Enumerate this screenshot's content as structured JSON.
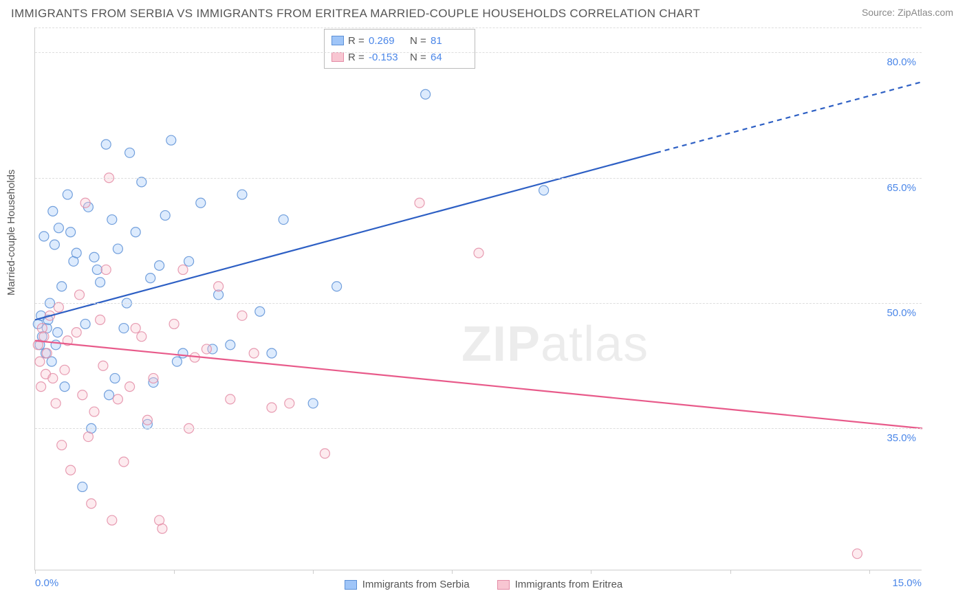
{
  "title": "IMMIGRANTS FROM SERBIA VS IMMIGRANTS FROM ERITREA MARRIED-COUPLE HOUSEHOLDS CORRELATION CHART",
  "source": "Source: ZipAtlas.com",
  "ylabel": "Married-couple Households",
  "watermark_bold": "ZIP",
  "watermark_rest": "atlas",
  "chart": {
    "type": "scatter",
    "xlim": [
      0.0,
      15.0
    ],
    "ylim": [
      18.0,
      83.0
    ],
    "x_tick_positions": [
      0.0,
      2.35,
      4.7,
      7.05,
      9.4,
      11.75,
      14.1
    ],
    "x_tick_labels": {
      "0": "0.0%",
      "15": "15.0%"
    },
    "y_ticks": [
      35.0,
      50.0,
      65.0,
      80.0
    ],
    "y_tick_labels": [
      "35.0%",
      "50.0%",
      "65.0%",
      "80.0%"
    ],
    "grid_color": "#dddddd",
    "axis_color": "#cccccc",
    "background": "#ffffff",
    "marker_radius": 7,
    "marker_fill_opacity": 0.35,
    "marker_stroke_opacity": 0.85,
    "series": [
      {
        "name": "Immigrants from Serbia",
        "color_fill": "#9fc5f8",
        "color_stroke": "#5b8fd6",
        "trend_color": "#2d5fc4",
        "r": "0.269",
        "n": "81",
        "trend": {
          "x0": 0.0,
          "y0": 48.0,
          "x1_solid": 10.5,
          "y1_solid": 68.0,
          "x1_dash": 15.0,
          "y1_dash": 76.5
        },
        "points": [
          [
            0.05,
            47.5
          ],
          [
            0.08,
            45.0
          ],
          [
            0.1,
            48.5
          ],
          [
            0.12,
            46.0
          ],
          [
            0.15,
            58.0
          ],
          [
            0.18,
            44.0
          ],
          [
            0.2,
            47.0
          ],
          [
            0.22,
            48.0
          ],
          [
            0.25,
            50.0
          ],
          [
            0.28,
            43.0
          ],
          [
            0.3,
            61.0
          ],
          [
            0.33,
            57.0
          ],
          [
            0.35,
            45.0
          ],
          [
            0.38,
            46.5
          ],
          [
            0.4,
            59.0
          ],
          [
            0.45,
            52.0
          ],
          [
            0.5,
            40.0
          ],
          [
            0.55,
            63.0
          ],
          [
            0.6,
            58.5
          ],
          [
            0.65,
            55.0
          ],
          [
            0.7,
            56.0
          ],
          [
            0.8,
            28.0
          ],
          [
            0.85,
            47.5
          ],
          [
            0.9,
            61.5
          ],
          [
            0.95,
            35.0
          ],
          [
            1.0,
            55.5
          ],
          [
            1.05,
            54.0
          ],
          [
            1.1,
            52.5
          ],
          [
            1.2,
            69.0
          ],
          [
            1.25,
            39.0
          ],
          [
            1.3,
            60.0
          ],
          [
            1.35,
            41.0
          ],
          [
            1.4,
            56.5
          ],
          [
            1.5,
            47.0
          ],
          [
            1.55,
            50.0
          ],
          [
            1.6,
            68.0
          ],
          [
            1.7,
            58.5
          ],
          [
            1.8,
            64.5
          ],
          [
            1.9,
            35.5
          ],
          [
            1.95,
            53.0
          ],
          [
            2.0,
            40.5
          ],
          [
            2.1,
            54.5
          ],
          [
            2.2,
            60.5
          ],
          [
            2.3,
            69.5
          ],
          [
            2.4,
            43.0
          ],
          [
            2.5,
            44.0
          ],
          [
            2.6,
            55.0
          ],
          [
            2.8,
            62.0
          ],
          [
            3.0,
            44.5
          ],
          [
            3.1,
            51.0
          ],
          [
            3.3,
            45.0
          ],
          [
            3.5,
            63.0
          ],
          [
            3.8,
            49.0
          ],
          [
            4.0,
            44.0
          ],
          [
            4.2,
            60.0
          ],
          [
            4.7,
            38.0
          ],
          [
            5.1,
            52.0
          ],
          [
            6.6,
            75.0
          ],
          [
            8.6,
            63.5
          ]
        ]
      },
      {
        "name": "Immigrants from Eritrea",
        "color_fill": "#f8c6d2",
        "color_stroke": "#e38ba5",
        "trend_color": "#e85a8a",
        "r": "-0.153",
        "n": "64",
        "trend": {
          "x0": 0.0,
          "y0": 45.5,
          "x1_solid": 15.0,
          "y1_solid": 35.0,
          "x1_dash": 15.0,
          "y1_dash": 35.0
        },
        "points": [
          [
            0.05,
            45.0
          ],
          [
            0.08,
            43.0
          ],
          [
            0.1,
            40.0
          ],
          [
            0.12,
            47.0
          ],
          [
            0.15,
            46.0
          ],
          [
            0.18,
            41.5
          ],
          [
            0.2,
            44.0
          ],
          [
            0.25,
            48.5
          ],
          [
            0.3,
            41.0
          ],
          [
            0.35,
            38.0
          ],
          [
            0.4,
            49.5
          ],
          [
            0.45,
            33.0
          ],
          [
            0.5,
            42.0
          ],
          [
            0.55,
            45.5
          ],
          [
            0.6,
            30.0
          ],
          [
            0.7,
            46.5
          ],
          [
            0.75,
            51.0
          ],
          [
            0.8,
            39.0
          ],
          [
            0.85,
            62.0
          ],
          [
            0.9,
            34.0
          ],
          [
            0.95,
            26.0
          ],
          [
            1.0,
            37.0
          ],
          [
            1.1,
            48.0
          ],
          [
            1.15,
            42.5
          ],
          [
            1.2,
            54.0
          ],
          [
            1.25,
            65.0
          ],
          [
            1.3,
            24.0
          ],
          [
            1.4,
            38.5
          ],
          [
            1.5,
            31.0
          ],
          [
            1.6,
            40.0
          ],
          [
            1.7,
            47.0
          ],
          [
            1.8,
            46.0
          ],
          [
            1.9,
            36.0
          ],
          [
            2.0,
            41.0
          ],
          [
            2.1,
            24.0
          ],
          [
            2.15,
            23.0
          ],
          [
            2.35,
            47.5
          ],
          [
            2.5,
            54.0
          ],
          [
            2.6,
            35.0
          ],
          [
            2.7,
            43.5
          ],
          [
            2.9,
            44.5
          ],
          [
            3.1,
            52.0
          ],
          [
            3.3,
            38.5
          ],
          [
            3.5,
            48.5
          ],
          [
            3.7,
            44.0
          ],
          [
            4.0,
            37.5
          ],
          [
            4.3,
            38.0
          ],
          [
            4.9,
            32.0
          ],
          [
            6.5,
            62.0
          ],
          [
            7.5,
            56.0
          ],
          [
            13.9,
            20.0
          ]
        ]
      }
    ]
  },
  "legend_bottom": [
    {
      "label": "Immigrants from Serbia",
      "fill": "#9fc5f8",
      "stroke": "#5b8fd6"
    },
    {
      "label": "Immigrants from Eritrea",
      "fill": "#f8c6d2",
      "stroke": "#e38ba5"
    }
  ]
}
